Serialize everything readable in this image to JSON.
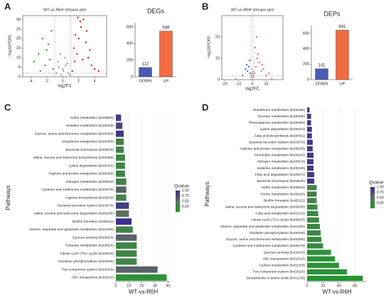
{
  "chart_data": [
    {
      "type": "scatter",
      "panel": "A",
      "title": "WT-vs-R6H Volcano plot",
      "xlabel": "log2FC",
      "ylabel": "−log10(FDR)",
      "xlim": [
        -5,
        5.5
      ],
      "ylim": [
        0,
        32
      ],
      "xticks": [
        -4,
        -2,
        0,
        2,
        4
      ],
      "yticks": [
        0,
        5,
        10,
        15,
        20,
        25,
        30
      ],
      "series": [
        {
          "name": "up",
          "color": "#d7261e",
          "x": [
            1.2,
            1.5,
            1.8,
            2.0,
            2.3,
            2.6,
            2.9,
            3.2,
            3.6,
            4.0,
            1.4,
            2.2,
            3.0,
            1.9,
            2.5,
            3.4,
            4.5,
            1.6
          ],
          "y": [
            3,
            8,
            12,
            20,
            26,
            30,
            18,
            10,
            6,
            4,
            15,
            29,
            24,
            31,
            9,
            14,
            3,
            22
          ]
        },
        {
          "name": "down",
          "color": "#2ca02c",
          "x": [
            -1.2,
            -1.6,
            -2.0,
            -2.5,
            -3.0,
            -1.4,
            -2.2,
            -3.6,
            -1.8,
            -2.8
          ],
          "y": [
            4,
            9,
            14,
            20,
            12,
            24,
            6,
            8,
            17,
            3
          ]
        },
        {
          "name": "none",
          "color": "#9a9a9a",
          "x": [
            -0.8,
            -0.5,
            -0.2,
            0.1,
            0.4,
            0.7,
            -0.6,
            0.3,
            0.0,
            0.9,
            -0.3,
            0.6
          ],
          "y": [
            2,
            5,
            1,
            3,
            6,
            2,
            8,
            10,
            4,
            1,
            12,
            7
          ]
        }
      ]
    },
    {
      "type": "bar",
      "title": "DEGs",
      "categories": [
        "DOWN",
        "UP"
      ],
      "values": [
        112,
        549
      ],
      "colors": [
        "#4a5bb5",
        "#f26b43"
      ],
      "ylim": [
        0,
        650
      ],
      "yticks": [
        0,
        200,
        400,
        600
      ]
    },
    {
      "type": "scatter",
      "panel": "B",
      "title": "WT-vs-R6H Volcano plot",
      "xlabel": "log2FC",
      "ylabel": "−log10(FDR)",
      "xlim": [
        -22,
        22
      ],
      "ylim": [
        0,
        30
      ],
      "xticks": [
        -20,
        -10,
        0,
        10
      ],
      "yticks": [
        0,
        10,
        20
      ],
      "series": [
        {
          "name": "up",
          "color": "#e0706a",
          "x": [
            1.5,
            2.5,
            3.5,
            5,
            6.5,
            8,
            10,
            2,
            4,
            7,
            3,
            12
          ],
          "y": [
            3,
            6,
            10,
            8,
            4,
            5,
            2,
            15,
            12,
            7,
            20,
            3
          ]
        },
        {
          "name": "down",
          "color": "#5a6fd0",
          "x": [
            -1.5,
            -2.5,
            -3.5,
            -5,
            -7,
            -2,
            -4
          ],
          "y": [
            3,
            6,
            4,
            5,
            2,
            9,
            7
          ]
        },
        {
          "name": "none",
          "color": "#aaaaaa",
          "x": [
            -0.8,
            -0.4,
            0,
            0.4,
            0.8,
            -0.2,
            0.6,
            -12,
            14
          ],
          "y": [
            1,
            2,
            3,
            1,
            2,
            5,
            4,
            0.5,
            0.6
          ]
        }
      ]
    },
    {
      "type": "bar",
      "title": "DEPs",
      "categories": [
        "DOWN",
        "UP"
      ],
      "values": [
        141,
        641
      ],
      "colors": [
        "#4a5bb5",
        "#f26b43"
      ],
      "ylim": [
        0,
        700
      ],
      "yticks": [
        0,
        200,
        400,
        600
      ]
    },
    {
      "type": "hbar",
      "panel": "C",
      "xlabel": "WT-vs-R6H",
      "ylabel": "Pathways",
      "xlim": [
        0,
        42
      ],
      "xticks": [
        0,
        10,
        20,
        30,
        40
      ],
      "categories": [
        "Sulfur metabolism (ko00920)",
        "Histidine metabolism (ko00340)",
        "Glycine, serine and threonine metabolism (ko00260)",
        "Glutathione metabolism (ko00480)",
        "Bacterial chemotaxis (ko02030)",
        "Valine, leucine and isoleucine biosynthesis (ko00290)",
        "Lysine degradation (ko00310)",
        "Arginine and proline metabolism (ko00330)",
        "Nitrogen metabolism (ko00910)",
        "Cysteine and methionine metabolism (ko00270)",
        "Arginine biosynthesis (ko00220)",
        "Bacterial secretion system (ko03070)",
        "Valine, leucine and isoleucine degradation (ko00280)",
        "Biofilm formation (ko05111)",
        "Alanine, aspartate and glutamate metabolism (ko01250)",
        "Quorum sensing (ko02024)",
        "Pyruvate metabolism (ko00620)",
        "Citrate cycle (TCA cycle) (ko00020)",
        "Oxidative phosphorylation (ko00190)",
        "Two-component system (ko02020)",
        "ABC transporters (ko02010)"
      ],
      "values": [
        4,
        5,
        6,
        6,
        6,
        7,
        7,
        7,
        8,
        8,
        8,
        10,
        10,
        12,
        13,
        16,
        16,
        16,
        16,
        32,
        39
      ],
      "qvalues": [
        0.9,
        0.8,
        0.9,
        0.3,
        0.3,
        0.25,
        0.25,
        0.25,
        0.3,
        0.6,
        0.3,
        0.9,
        0.5,
        1.0,
        0.3,
        0.6,
        0.25,
        0.25,
        0.25,
        0.6,
        0.1
      ],
      "legend_title": "Qvalue",
      "legend_colors": [
        "#1f9a2e",
        "#5f6f5f",
        "#3c2d8c"
      ],
      "legend_ticks": [
        {
          "value": 1,
          "label": "1.00"
        },
        {
          "value": 0.75,
          "label": "0.75"
        },
        {
          "value": 0.5,
          "label": "0.50"
        },
        {
          "value": 0.25,
          "label": "0.25"
        }
      ]
    },
    {
      "type": "hbar",
      "panel": "D",
      "xlabel": "WT-vs-R6H",
      "ylabel": "Pathways",
      "xlim": [
        0,
        75
      ],
      "xticks": [
        0,
        20,
        40,
        60
      ],
      "categories": [
        "Glutathione metabolism (ko00480)",
        "Tyrosine metabolism (ko00350)",
        "Phenylalanine metabolism (ko00360)",
        "Lysine degradation (ko00310)",
        "Fatty acid biosynthesis (ko00061)",
        "Bacterial secretion system (ko03070)",
        "Arginine and proline metabolism (ko00330)",
        "Pyrimidine metabolism (ko00240)",
        "Nitrogen metabolism (ko00910)",
        "Histidine metabolism (ko00340)",
        "Fatty acid degradation (ko00071)",
        "Bacterial chemotaxis (ko02030)",
        "Sulfur metabolism (ko00920)",
        "Purine metabolism (ko00230)",
        "Biofilm formation (ko05111)",
        "Valine, leucine and isoleucine degradation (ko00280)",
        "Fatty acid metabolism (ko01212)",
        "Citrate cycle (TCA cycle) (ko00020)",
        "Alanine, aspartate and glutamate metabolism (ko01250)",
        "Oxidative phosphorylation (ko00190)",
        "Glycine, serine and threonine metabolism (ko00260)",
        "Cysteine and methionine metabolism (ko00270)",
        "Quorum sensing (ko02024)",
        "ABC transporters (ko02010)",
        "Carbon metabolism (ko01200)",
        "Two-component system (ko02020)",
        "Biosynthesis of amino acids (ko01230)"
      ],
      "values": [
        3,
        5,
        5,
        6,
        6,
        7,
        7,
        8,
        8,
        8,
        9,
        9,
        12,
        12,
        12,
        13,
        14,
        15,
        16,
        17,
        18,
        20,
        30,
        35,
        40,
        50,
        70
      ],
      "qvalues": [
        0.9,
        0.9,
        0.9,
        0.9,
        0.9,
        0.9,
        0.9,
        0.9,
        0.9,
        0.9,
        0.9,
        0.9,
        0.3,
        0.3,
        0.3,
        0.25,
        0.2,
        0.2,
        0.2,
        0.2,
        0.2,
        0.2,
        0.1,
        0.1,
        0.1,
        0.1,
        0.05
      ],
      "legend_title": "Qvalue",
      "legend_colors": [
        "#1f9a2e",
        "#5f6f5f",
        "#3c2d8c"
      ],
      "legend_ticks": [
        {
          "value": 1,
          "label": "1.00"
        },
        {
          "value": 0.75,
          "label": "0.75"
        },
        {
          "value": 0.5,
          "label": "0.50"
        },
        {
          "value": 0.25,
          "label": "0.25"
        }
      ]
    }
  ]
}
